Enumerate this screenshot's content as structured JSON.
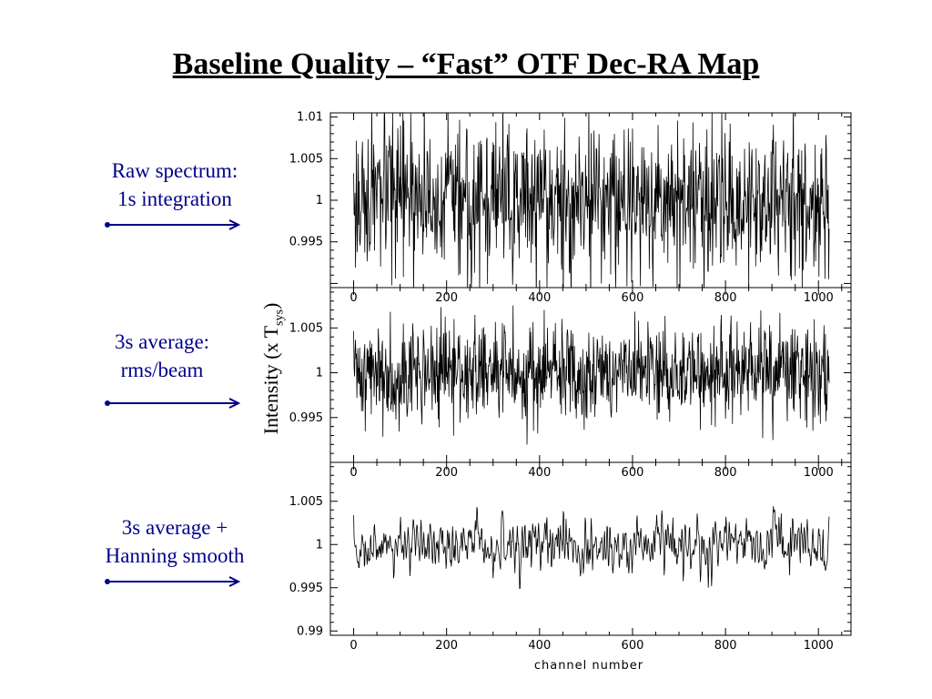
{
  "title": "Baseline Quality – “Fast” OTF Dec-RA Map",
  "ylabel": {
    "main": "Intensity (x T",
    "sub": "sys",
    "close": ")"
  },
  "xlabel": "channel number",
  "colors": {
    "label": "#00008b",
    "trace": "#000000",
    "axis": "#000000"
  },
  "chart_data": [
    {
      "type": "line",
      "annotation": [
        "Raw spectrum:",
        "1s integration"
      ],
      "xlim": [
        -50,
        1070
      ],
      "ylim": [
        0.9895,
        1.0105
      ],
      "xticks": [
        0,
        200,
        400,
        600,
        800,
        1000
      ],
      "ytick_values": [
        1.01,
        1.005,
        1,
        0.995
      ],
      "ytick_labels": [
        "1.01",
        "1.005",
        "1",
        "0.995"
      ],
      "n_channels": 1024,
      "noise_sigma": 0.0045,
      "seed": 17
    },
    {
      "type": "line",
      "annotation": [
        "3s average:",
        "rms/beam"
      ],
      "xlim": [
        -50,
        1070
      ],
      "ylim": [
        0.99,
        1.0095
      ],
      "xticks": [
        0,
        200,
        400,
        600,
        800,
        1000
      ],
      "ytick_values": [
        1.005,
        1,
        0.995
      ],
      "ytick_labels": [
        "1.005",
        "1",
        "0.995"
      ],
      "n_channels": 1024,
      "noise_sigma": 0.0028,
      "seed": 41
    },
    {
      "type": "line",
      "annotation": [
        "3s average +",
        "Hanning smooth"
      ],
      "xlim": [
        -50,
        1070
      ],
      "ylim": [
        0.9895,
        1.0095
      ],
      "xticks": [
        0,
        200,
        400,
        600,
        800,
        1000
      ],
      "ytick_values": [
        1.005,
        1,
        0.995,
        0.99
      ],
      "ytick_labels": [
        "1.005",
        "1",
        "0.995",
        "0.99"
      ],
      "n_channels": 1024,
      "noise_sigma": 0.0016,
      "seed": 73
    }
  ]
}
